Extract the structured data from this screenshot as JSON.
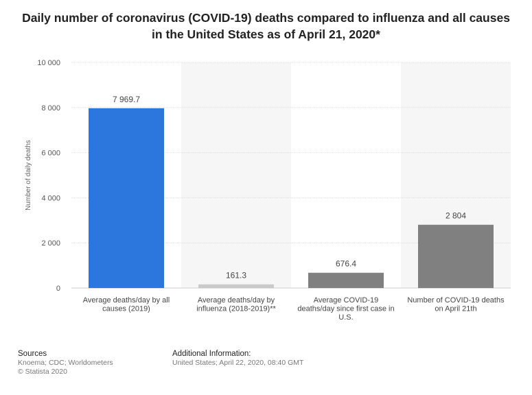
{
  "title_lines": [
    "Daily number of coronavirus (COVID-19) deaths compared to influenza and all causes",
    "in the United States as of April 21, 2020*"
  ],
  "chart_data": {
    "type": "bar",
    "title": "Daily number of coronavirus (COVID-19) deaths compared to influenza and all causes in the United States as of April 21, 2020*",
    "categories": [
      [
        "Average deaths/day by all",
        "causes (2019)"
      ],
      [
        "Average deaths/day by",
        "influenza (2018-2019)**"
      ],
      [
        "Average COVID-19",
        "deaths/day since first case in",
        "U.S."
      ],
      [
        "Number of COVID-19 deaths",
        "on April 21th"
      ]
    ],
    "values": [
      7969.7,
      161.3,
      676.4,
      2804
    ],
    "value_labels": [
      "7 969.7",
      "161.3",
      "676.4",
      "2 804"
    ],
    "bar_colors": [
      "#2b77de",
      "#c9c9c9",
      "#808080",
      "#808080"
    ],
    "xlabel": "",
    "ylabel": "Number of daily deaths",
    "ylim": [
      0,
      10000
    ],
    "yticks": [
      0,
      2000,
      4000,
      6000,
      8000,
      10000
    ],
    "ytick_labels": [
      "0",
      "2 000",
      "4 000",
      "6 000",
      "8 000",
      "10 000"
    ],
    "grid": true
  },
  "footer": {
    "sources_heading": "Sources",
    "sources_lines": [
      "Knoema; CDC; Worldometers",
      "© Statista 2020"
    ],
    "additional_heading": "Additional Information:",
    "additional_lines": [
      "United States; April 22, 2020, 08:40 GMT"
    ]
  }
}
